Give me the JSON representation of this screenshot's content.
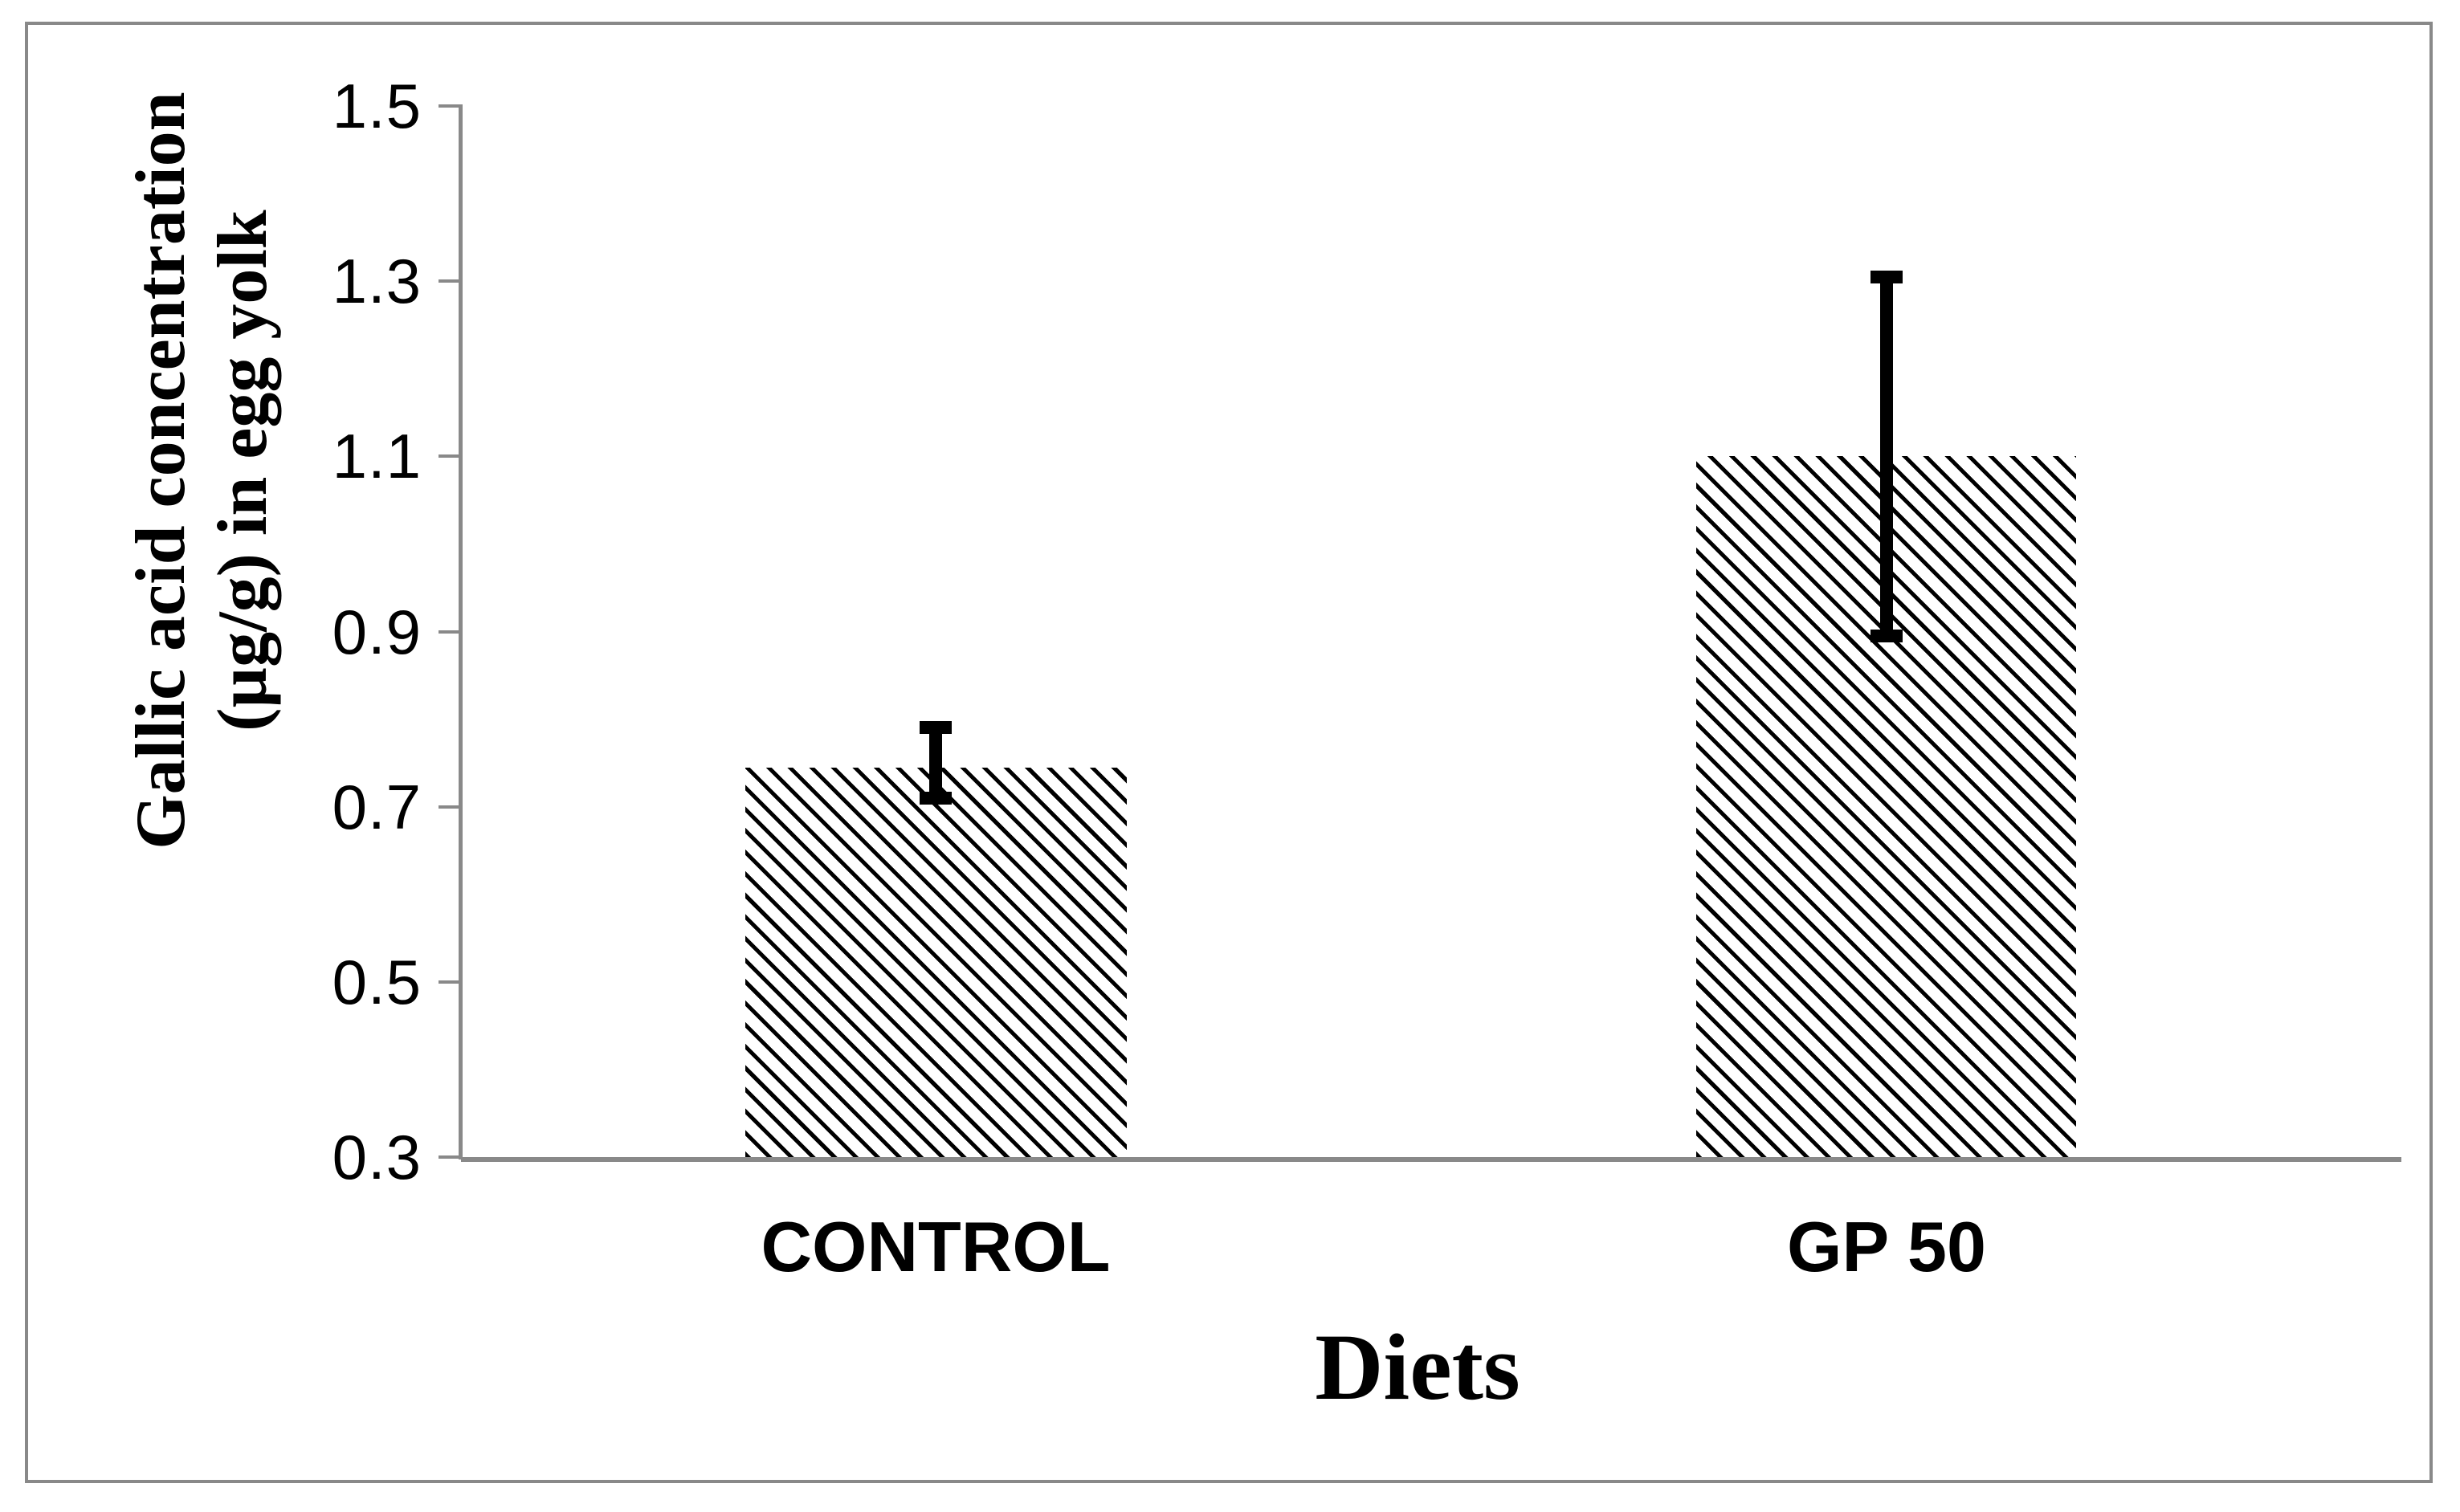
{
  "chart_data": {
    "type": "bar",
    "categories": [
      "CONTROL",
      "GP 50"
    ],
    "values": [
      0.745,
      1.1
    ],
    "error_bars": {
      "low": [
        0.71,
        0.895
      ],
      "high": [
        0.79,
        1.305
      ]
    },
    "title": "",
    "xlabel": "Diets",
    "ylabel": "Gallic acid concentration (µg/g) in egg yolk",
    "ylabel_line1": "Gallic acid concentration",
    "ylabel_line2": "(µg/g) in egg yolk",
    "ylim": [
      0.3,
      1.5
    ],
    "ytick_step": 0.2,
    "yticks": [
      "1.5",
      "1.3",
      "1.1",
      "0.9",
      "0.7",
      "0.5",
      "0.3"
    ],
    "grid": false,
    "legend_position": "none",
    "bar_fill": "diagonal-hatch",
    "colors": {
      "axis": "#898989",
      "text": "#000000",
      "hatch": "#000000",
      "background": "#ffffff"
    }
  }
}
